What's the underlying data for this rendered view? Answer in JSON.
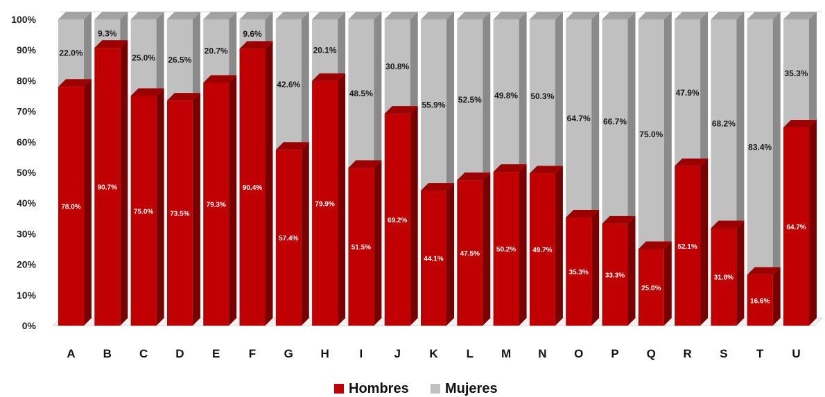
{
  "chart_data": {
    "type": "bar",
    "stacked": true,
    "percent": true,
    "categories": [
      "A",
      "B",
      "C",
      "D",
      "E",
      "F",
      "G",
      "H",
      "I",
      "J",
      "K",
      "L",
      "M",
      "N",
      "O",
      "P",
      "Q",
      "R",
      "S",
      "T",
      "U"
    ],
    "series": [
      {
        "name": "Hombres",
        "color": "#c00000",
        "values": [
          78.0,
          90.7,
          75.0,
          73.5,
          79.3,
          90.4,
          57.4,
          79.9,
          51.5,
          69.2,
          44.1,
          47.5,
          50.2,
          49.7,
          35.3,
          33.3,
          25.0,
          52.1,
          31.8,
          16.6,
          64.7
        ],
        "labels": [
          "78.0%",
          "90.7%",
          "75.0%",
          "73.5%",
          "79.3%",
          "90.4%",
          "57.4%",
          "79.9%",
          "51.5%",
          "69.2%",
          "44.1%",
          "47.5%",
          "50.2%",
          "49.7%",
          "35.3%",
          "33.3%",
          "25.0%",
          "52.1%",
          "31.8%",
          "16.6%",
          "64.7%"
        ]
      },
      {
        "name": "Mujeres",
        "color": "#c0c0c0",
        "values": [
          22.0,
          9.3,
          25.0,
          26.5,
          20.7,
          9.6,
          42.6,
          20.1,
          48.5,
          30.8,
          55.9,
          52.5,
          49.8,
          50.3,
          64.7,
          66.7,
          75.0,
          47.9,
          68.2,
          83.4,
          35.3
        ],
        "labels": [
          "22.0%",
          "9.3%",
          "25.0%",
          "26.5%",
          "20.7%",
          "9.6%",
          "42.6%",
          "20.1%",
          "48.5%",
          "30.8%",
          "55.9%",
          "52.5%",
          "49.8%",
          "50.3%",
          "64.7%",
          "66.7%",
          "75.0%",
          "47.9%",
          "68.2%",
          "83.4%",
          "35.3%"
        ]
      }
    ],
    "ylim": [
      0,
      100
    ],
    "yticks": [
      "0%",
      "10%",
      "20%",
      "30%",
      "40%",
      "50%",
      "60%",
      "70%",
      "80%",
      "90%",
      "100%"
    ],
    "style": "3d",
    "legend_position": "bottom",
    "grid": false
  }
}
